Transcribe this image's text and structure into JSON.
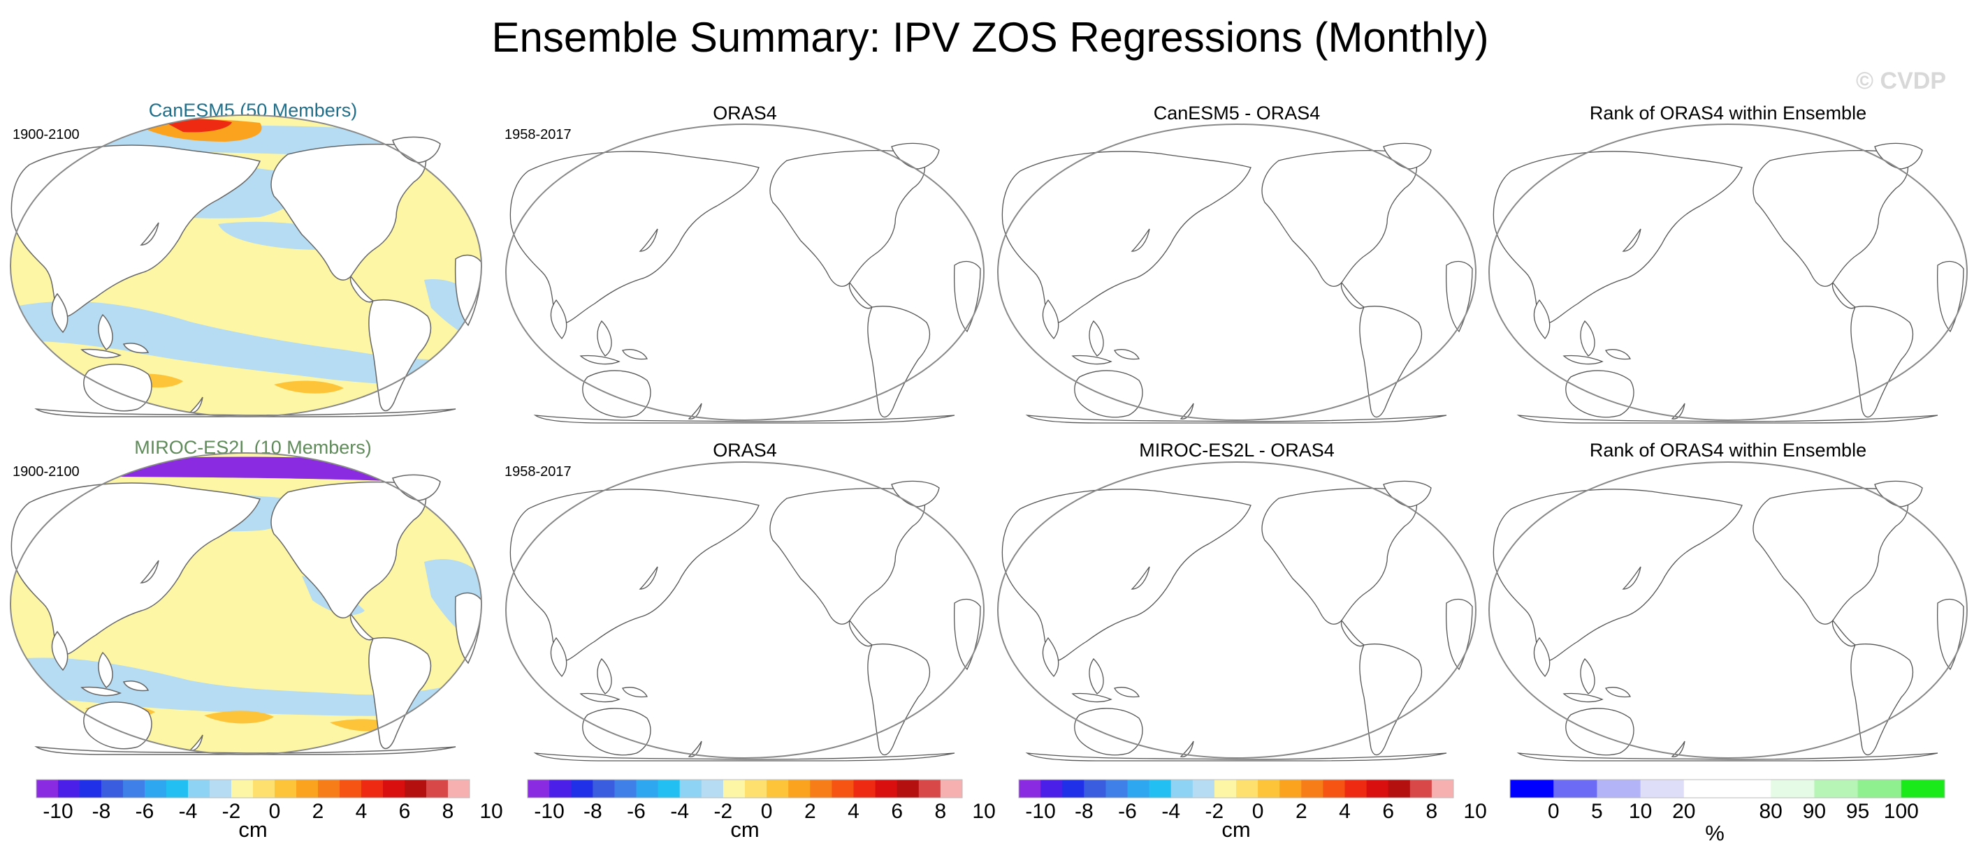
{
  "figure": {
    "title": "Ensemble Summary: IPV ZOS Regressions (Monthly)",
    "watermark": "© CVDP"
  },
  "rows": [
    {
      "ensemble_title": "CanESM5 (50 Members)",
      "ensemble_title_color": "#1f6f8b",
      "ensemble_period": "1900-2100",
      "obs_title": "ORAS4",
      "obs_period": "1958-2017",
      "diff_title": "CanESM5 - ORAS4",
      "rank_title": "Rank of ORAS4 within Ensemble",
      "ensemble_map": "regression field: mostly light yellow (0 to 2 cm) in tropical Pacific and mid-latitudes, light blue (-2 to 0 cm) in North Pacific, Southern Ocean band and Arctic margins; red/orange (6 to 10 cm) patch in Arctic Ocean north of Siberia and near Greenland"
    },
    {
      "ensemble_title": "MIROC-ES2L (10 Members)",
      "ensemble_title_color": "#5f8a5a",
      "ensemble_period": "1900-2100",
      "obs_title": "ORAS4",
      "obs_period": "1958-2017",
      "diff_title": "MIROC-ES2L - ORAS4",
      "rank_title": "Rank of ORAS4 within Ensemble",
      "ensemble_map": "regression field: light yellow (0 to 2 cm) across tropical and South Pacific, light blue (-2 to 0 cm) in North Pacific and Southern Ocean; purple (below -10 cm) across Arctic Ocean, blue near Hudson Bay and Nordic Seas"
    }
  ],
  "colorbars": [
    {
      "unit": "cm",
      "labels": [
        "-10",
        "-8",
        "-6",
        "-4",
        "-2",
        "0",
        "2",
        "4",
        "6",
        "8",
        "10"
      ],
      "colors": [
        "#8a2be2",
        "#4b1fe8",
        "#2030e8",
        "#3a5de0",
        "#3f7fe8",
        "#2fa6f0",
        "#22c0f2",
        "#8fd3f4",
        "#b5dcf2",
        "#fdf6a5",
        "#fde06e",
        "#fdc43a",
        "#fba21f",
        "#f77d18",
        "#f55412",
        "#ee2a12",
        "#d90f0f",
        "#b51010",
        "#d84848",
        "#f7b0b0"
      ]
    },
    {
      "unit": "cm",
      "labels": [
        "-10",
        "-8",
        "-6",
        "-4",
        "-2",
        "0",
        "2",
        "4",
        "6",
        "8",
        "10"
      ],
      "colors": [
        "#8a2be2",
        "#4b1fe8",
        "#2030e8",
        "#3a5de0",
        "#3f7fe8",
        "#2fa6f0",
        "#22c0f2",
        "#8fd3f4",
        "#b5dcf2",
        "#fdf6a5",
        "#fde06e",
        "#fdc43a",
        "#fba21f",
        "#f77d18",
        "#f55412",
        "#ee2a12",
        "#d90f0f",
        "#b51010",
        "#d84848",
        "#f7b0b0"
      ]
    },
    {
      "unit": "cm",
      "labels": [
        "-10",
        "-8",
        "-6",
        "-4",
        "-2",
        "0",
        "2",
        "4",
        "6",
        "8",
        "10"
      ],
      "colors": [
        "#8a2be2",
        "#4b1fe8",
        "#2030e8",
        "#3a5de0",
        "#3f7fe8",
        "#2fa6f0",
        "#22c0f2",
        "#8fd3f4",
        "#b5dcf2",
        "#fdf6a5",
        "#fde06e",
        "#fdc43a",
        "#fba21f",
        "#f77d18",
        "#f55412",
        "#ee2a12",
        "#d90f0f",
        "#b51010",
        "#d84848",
        "#f7b0b0"
      ]
    },
    {
      "unit": "%",
      "labels": [
        "0",
        "5",
        "10",
        "20",
        "80",
        "90",
        "95",
        "100"
      ],
      "colors": [
        "#0000ff",
        "#6b6bf5",
        "#b3b3f7",
        "#dedef8",
        "#ffffff",
        "#ffffff",
        "#e6fbe6",
        "#b7f5b7",
        "#8ef08e",
        "#1aea1a"
      ]
    }
  ]
}
